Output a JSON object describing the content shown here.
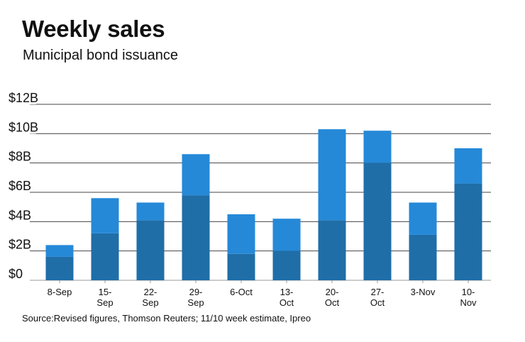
{
  "header": {
    "title": "Weekly sales",
    "subtitle": "Municipal bond issuance"
  },
  "footer": {
    "source": "Source:Revised figures, Thomson Reuters; 11/10 week estimate, Ipreo"
  },
  "colors": {
    "dark": "#1f6ea8",
    "light": "#2589d8",
    "grid": "#444444"
  },
  "chart_data": {
    "type": "bar",
    "stacked": true,
    "title": "Weekly sales",
    "subtitle": "Municipal bond issuance",
    "xlabel": "",
    "ylabel": "",
    "ylim": [
      0,
      12
    ],
    "y_ticks": [
      0,
      2,
      4,
      6,
      8,
      10,
      12
    ],
    "y_tick_labels": [
      "$0",
      "$2B",
      "$4B",
      "$6B",
      "$8B",
      "$10B",
      "$12B"
    ],
    "categories": [
      [
        "8-Sep"
      ],
      [
        "15-",
        "Sep"
      ],
      [
        "22-",
        "Sep"
      ],
      [
        "29-",
        "Sep"
      ],
      [
        "6-Oct"
      ],
      [
        "13-",
        "Oct"
      ],
      [
        "20-",
        "Oct"
      ],
      [
        "27-",
        "Oct"
      ],
      [
        "3-Nov"
      ],
      [
        "10-",
        "Nov"
      ]
    ],
    "series": [
      {
        "name": "dark segment",
        "values": [
          1.6,
          3.2,
          4.1,
          5.8,
          1.8,
          2.0,
          4.1,
          8.0,
          3.1,
          6.6
        ]
      },
      {
        "name": "light segment",
        "values": [
          0.8,
          2.4,
          1.2,
          2.8,
          2.7,
          2.2,
          6.2,
          2.2,
          2.2,
          2.4
        ]
      }
    ]
  }
}
